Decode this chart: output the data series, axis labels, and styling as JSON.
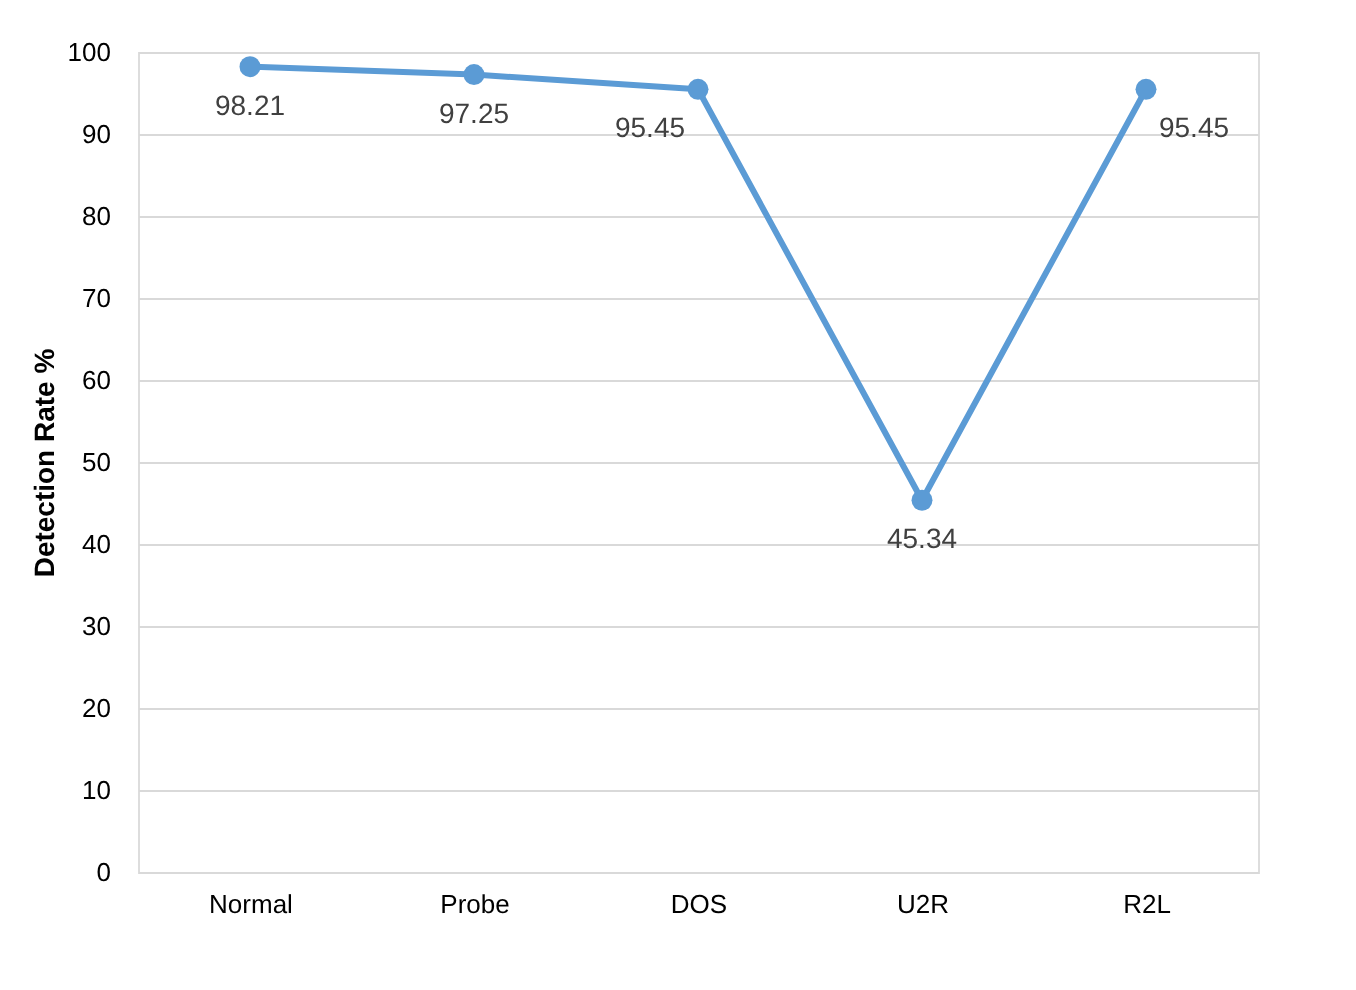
{
  "chart_data": {
    "type": "line",
    "ylabel": "Detection Rate %",
    "categories": [
      "Normal",
      "Probe",
      "DOS",
      "U2R",
      "R2L"
    ],
    "series": [
      {
        "color": "#5b9bd5",
        "values": [
          98.21,
          97.25,
          95.45,
          45.34,
          95.45
        ]
      }
    ],
    "ylim": [
      0,
      100
    ],
    "yticks": [
      0,
      10,
      20,
      30,
      40,
      50,
      60,
      70,
      80,
      90,
      100
    ],
    "grid": "y",
    "marker": "circle",
    "line_style": "solid",
    "data_labels": true
  }
}
